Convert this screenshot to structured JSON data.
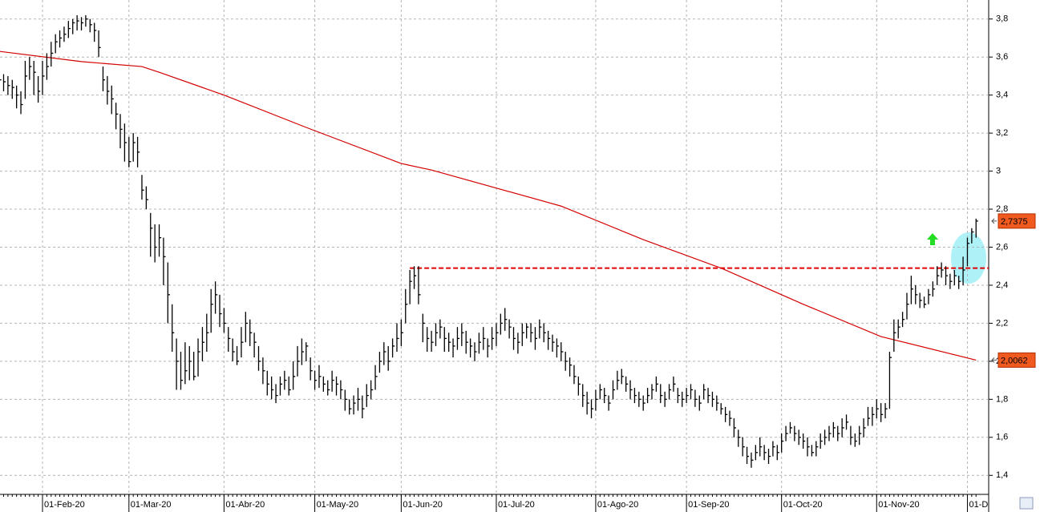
{
  "chart_data": {
    "type": "ohlc",
    "color": "#000000",
    "categories": [
      null,
      null,
      null,
      null,
      null,
      null,
      null,
      null,
      null,
      null,
      "01-Feb-20",
      null,
      null,
      null,
      null,
      null,
      null,
      null,
      null,
      null,
      null,
      null,
      null,
      null,
      null,
      null,
      null,
      null,
      null,
      null,
      "01-Mar-20",
      null,
      null,
      null,
      null,
      null,
      null,
      null,
      null,
      null,
      null,
      null,
      null,
      null,
      null,
      null,
      null,
      null,
      null,
      null,
      null,
      null,
      "01-Abr-20",
      null,
      null,
      null,
      null,
      null,
      null,
      null,
      null,
      null,
      null,
      null,
      null,
      null,
      null,
      null,
      null,
      null,
      null,
      null,
      null,
      "01-May-20",
      null,
      null,
      null,
      null,
      null,
      null,
      null,
      null,
      null,
      null,
      null,
      null,
      null,
      null,
      null,
      null,
      null,
      null,
      null,
      "01-Jun-20",
      null,
      null,
      null,
      null,
      null,
      null,
      null,
      null,
      null,
      null,
      null,
      null,
      null,
      null,
      null,
      null,
      null,
      null,
      null,
      null,
      null,
      "01-Jul-20",
      null,
      null,
      null,
      null,
      null,
      null,
      null,
      null,
      null,
      null,
      null,
      null,
      null,
      null,
      null,
      null,
      null,
      null,
      null,
      null,
      null,
      null,
      "01-Ago-20",
      null,
      null,
      null,
      null,
      null,
      null,
      null,
      null,
      null,
      null,
      null,
      null,
      null,
      null,
      null,
      null,
      null,
      null,
      null,
      null,
      "01-Sep-20",
      null,
      null,
      null,
      null,
      null,
      null,
      null,
      null,
      null,
      null,
      null,
      null,
      null,
      null,
      null,
      null,
      null,
      null,
      null,
      null,
      null,
      "01-Oct-20",
      null,
      null,
      null,
      null,
      null,
      null,
      null,
      null,
      null,
      null,
      null,
      null,
      null,
      null,
      null,
      null,
      null,
      null,
      null,
      null,
      null,
      "01-Nov-20",
      null,
      null,
      null,
      null,
      null,
      null,
      null,
      null,
      null,
      null,
      null,
      null,
      null,
      null,
      null,
      null,
      null,
      null,
      null,
      null,
      "01-D",
      null,
      null
    ],
    "high": [
      3.52,
      3.51,
      3.5,
      3.48,
      3.45,
      3.42,
      3.58,
      3.6,
      3.58,
      3.5,
      3.58,
      3.62,
      3.68,
      3.72,
      3.74,
      3.76,
      3.79,
      3.8,
      3.82,
      3.81,
      3.82,
      3.8,
      3.78,
      3.74,
      3.55,
      3.5,
      3.45,
      3.36,
      3.3,
      3.25,
      3.18,
      3.2,
      3.18,
      2.98,
      2.92,
      2.78,
      2.72,
      2.72,
      2.65,
      2.52,
      2.3,
      2.12,
      2.05,
      2.1,
      2.08,
      2.05,
      2.12,
      2.18,
      2.25,
      2.38,
      2.42,
      2.35,
      2.28,
      2.18,
      2.12,
      2.08,
      2.18,
      2.26,
      2.22,
      2.15,
      2.08,
      2.02,
      1.95,
      1.92,
      1.88,
      1.92,
      1.95,
      1.92,
      2.0,
      2.08,
      2.12,
      2.1,
      2.02,
      1.95,
      1.98,
      1.92,
      1.9,
      1.95,
      1.92,
      1.9,
      1.85,
      1.8,
      1.82,
      1.86,
      1.82,
      1.88,
      1.9,
      1.98,
      2.05,
      2.1,
      2.08,
      2.12,
      2.2,
      2.22,
      2.38,
      2.48,
      2.5,
      2.5,
      2.25,
      2.18,
      2.16,
      2.2,
      2.22,
      2.18,
      2.15,
      2.12,
      2.18,
      2.2,
      2.16,
      2.12,
      2.1,
      2.15,
      2.18,
      2.12,
      2.18,
      2.2,
      2.25,
      2.28,
      2.22,
      2.18,
      2.15,
      2.2,
      2.2,
      2.2,
      2.18,
      2.22,
      2.2,
      2.16,
      2.14,
      2.12,
      2.1,
      2.05,
      2.02,
      1.98,
      1.92,
      1.88,
      1.84,
      1.8,
      1.85,
      1.88,
      1.86,
      1.82,
      1.9,
      1.95,
      1.96,
      1.92,
      1.9,
      1.86,
      1.84,
      1.82,
      1.86,
      1.88,
      1.92,
      1.88,
      1.84,
      1.88,
      1.92,
      1.86,
      1.84,
      1.86,
      1.88,
      1.85,
      1.82,
      1.88,
      1.86,
      1.84,
      1.82,
      1.78,
      1.76,
      1.74,
      1.7,
      1.64,
      1.6,
      1.55,
      1.52,
      1.56,
      1.6,
      1.56,
      1.54,
      1.58,
      1.56,
      1.62,
      1.66,
      1.68,
      1.66,
      1.64,
      1.62,
      1.6,
      1.56,
      1.58,
      1.62,
      1.64,
      1.66,
      1.68,
      1.66,
      1.7,
      1.72,
      1.66,
      1.62,
      1.66,
      1.7,
      1.76,
      1.76,
      1.8,
      1.78,
      1.78,
      2.05,
      2.22,
      2.22,
      2.26,
      2.36,
      2.45,
      2.4,
      2.36,
      2.34,
      2.38,
      2.42,
      2.5,
      2.52,
      2.5,
      2.46,
      2.48,
      2.45,
      2.55,
      2.65,
      2.7,
      2.75
    ],
    "low": [
      3.44,
      3.42,
      3.4,
      3.38,
      3.33,
      3.3,
      3.38,
      3.48,
      3.4,
      3.36,
      3.4,
      3.48,
      3.55,
      3.62,
      3.65,
      3.68,
      3.7,
      3.72,
      3.74,
      3.74,
      3.76,
      3.73,
      3.68,
      3.6,
      3.42,
      3.35,
      3.3,
      3.22,
      3.12,
      3.05,
      3.02,
      3.05,
      3.02,
      2.85,
      2.8,
      2.55,
      2.52,
      2.55,
      2.4,
      2.2,
      2.05,
      1.85,
      1.85,
      1.88,
      1.9,
      1.9,
      1.92,
      2.0,
      2.05,
      2.15,
      2.25,
      2.18,
      2.15,
      2.05,
      2.0,
      1.98,
      2.02,
      2.1,
      2.08,
      2.02,
      1.95,
      1.88,
      1.82,
      1.8,
      1.78,
      1.82,
      1.85,
      1.82,
      1.85,
      1.92,
      1.98,
      2.0,
      1.9,
      1.85,
      1.86,
      1.84,
      1.82,
      1.84,
      1.82,
      1.8,
      1.74,
      1.72,
      1.72,
      1.74,
      1.7,
      1.76,
      1.8,
      1.85,
      1.94,
      1.98,
      1.95,
      2.02,
      2.05,
      2.08,
      2.2,
      2.3,
      2.38,
      2.3,
      2.1,
      2.05,
      2.05,
      2.08,
      2.12,
      2.05,
      2.05,
      2.02,
      2.06,
      2.08,
      2.04,
      2.02,
      2.0,
      2.04,
      2.06,
      2.02,
      2.06,
      2.08,
      2.14,
      2.16,
      2.12,
      2.06,
      2.04,
      2.08,
      2.12,
      2.1,
      2.06,
      2.12,
      2.1,
      2.06,
      2.05,
      2.02,
      2.0,
      1.95,
      1.92,
      1.88,
      1.82,
      1.76,
      1.72,
      1.7,
      1.74,
      1.8,
      1.78,
      1.74,
      1.8,
      1.85,
      1.88,
      1.84,
      1.8,
      1.78,
      1.76,
      1.74,
      1.78,
      1.8,
      1.84,
      1.78,
      1.76,
      1.8,
      1.84,
      1.78,
      1.76,
      1.78,
      1.8,
      1.76,
      1.74,
      1.8,
      1.78,
      1.76,
      1.74,
      1.72,
      1.68,
      1.66,
      1.6,
      1.55,
      1.5,
      1.46,
      1.44,
      1.48,
      1.5,
      1.48,
      1.46,
      1.5,
      1.48,
      1.52,
      1.58,
      1.62,
      1.58,
      1.56,
      1.54,
      1.5,
      1.5,
      1.5,
      1.54,
      1.56,
      1.58,
      1.6,
      1.58,
      1.6,
      1.64,
      1.56,
      1.55,
      1.56,
      1.6,
      1.66,
      1.66,
      1.7,
      1.68,
      1.7,
      1.75,
      2.05,
      2.12,
      2.18,
      2.22,
      2.3,
      2.3,
      2.28,
      2.28,
      2.3,
      2.34,
      2.4,
      2.44,
      2.4,
      2.38,
      2.4,
      2.38,
      2.4,
      2.5,
      2.62,
      2.65
    ],
    "close": [
      3.48,
      3.47,
      3.45,
      3.44,
      3.4,
      3.35,
      3.5,
      3.55,
      3.52,
      3.42,
      3.5,
      3.55,
      3.62,
      3.68,
      3.7,
      3.72,
      3.75,
      3.78,
      3.79,
      3.78,
      3.8,
      3.77,
      3.74,
      3.65,
      3.48,
      3.42,
      3.38,
      3.3,
      3.22,
      3.15,
      3.05,
      3.15,
      3.1,
      2.9,
      2.85,
      2.7,
      2.6,
      2.65,
      2.55,
      2.35,
      2.15,
      2.0,
      1.9,
      1.95,
      2.0,
      1.92,
      2.05,
      2.1,
      2.15,
      2.3,
      2.35,
      2.25,
      2.2,
      2.12,
      2.05,
      2.0,
      2.1,
      2.2,
      2.15,
      2.1,
      2.0,
      1.95,
      1.88,
      1.85,
      1.82,
      1.88,
      1.9,
      1.85,
      1.92,
      2.0,
      2.05,
      2.08,
      1.95,
      1.9,
      1.92,
      1.88,
      1.85,
      1.9,
      1.88,
      1.85,
      1.8,
      1.75,
      1.78,
      1.8,
      1.75,
      1.82,
      1.85,
      1.92,
      2.0,
      2.05,
      2.0,
      2.08,
      2.12,
      2.15,
      2.3,
      2.42,
      2.45,
      2.35,
      2.2,
      2.12,
      2.1,
      2.15,
      2.18,
      2.12,
      2.1,
      2.08,
      2.12,
      2.15,
      2.1,
      2.08,
      2.05,
      2.1,
      2.12,
      2.08,
      2.12,
      2.15,
      2.2,
      2.22,
      2.18,
      2.12,
      2.1,
      2.15,
      2.18,
      2.15,
      2.12,
      2.18,
      2.15,
      2.12,
      2.1,
      2.08,
      2.05,
      2.0,
      1.98,
      1.92,
      1.88,
      1.82,
      1.78,
      1.75,
      1.8,
      1.85,
      1.82,
      1.78,
      1.85,
      1.9,
      1.92,
      1.88,
      1.85,
      1.82,
      1.8,
      1.78,
      1.82,
      1.85,
      1.88,
      1.82,
      1.8,
      1.85,
      1.88,
      1.82,
      1.8,
      1.82,
      1.85,
      1.8,
      1.78,
      1.85,
      1.82,
      1.8,
      1.78,
      1.75,
      1.72,
      1.7,
      1.65,
      1.6,
      1.55,
      1.5,
      1.48,
      1.52,
      1.55,
      1.52,
      1.5,
      1.55,
      1.52,
      1.58,
      1.62,
      1.65,
      1.62,
      1.6,
      1.58,
      1.55,
      1.52,
      1.55,
      1.58,
      1.6,
      1.62,
      1.65,
      1.62,
      1.65,
      1.68,
      1.6,
      1.58,
      1.62,
      1.65,
      1.7,
      1.72,
      1.75,
      1.72,
      1.75,
      2.02,
      2.15,
      2.18,
      2.22,
      2.3,
      2.38,
      2.35,
      2.32,
      2.3,
      2.35,
      2.38,
      2.45,
      2.48,
      2.45,
      2.42,
      2.45,
      2.42,
      2.48,
      2.62,
      2.68,
      2.7375
    ],
    "moving_average": {
      "color": "#d40000",
      "x": [
        0,
        19,
        33,
        37,
        52,
        71,
        93,
        100,
        130,
        149,
        167,
        186,
        204,
        226
      ],
      "values": [
        3.63,
        3.576,
        3.55,
        3.52,
        3.4,
        3.23,
        3.04,
        3.006,
        2.816,
        2.64,
        2.49,
        2.3,
        2.13,
        2.0062
      ]
    },
    "level": {
      "value": 2.49,
      "start": 95,
      "color": "#e00000"
    },
    "price_tags": [
      {
        "value": 2.7375,
        "label": "2,7375"
      },
      {
        "value": 2.0062,
        "label": "2,0062"
      }
    ],
    "ylim": [
      1.3,
      3.9
    ],
    "yticks": [
      {
        "value": 1.4,
        "label": "1,4"
      },
      {
        "value": 1.6,
        "label": "1,6"
      },
      {
        "value": 1.8,
        "label": "1,8"
      },
      {
        "value": 2,
        "label": "2"
      },
      {
        "value": 2.2,
        "label": "2,2"
      },
      {
        "value": 2.4,
        "label": "2,4"
      },
      {
        "value": 2.6,
        "label": "2,6"
      },
      {
        "value": 2.8,
        "label": "2,8"
      },
      3,
      {
        "value": 3.2,
        "label": "3,2"
      },
      {
        "value": 3.4,
        "label": "3,4"
      },
      {
        "value": 3.6,
        "label": "3,6"
      },
      {
        "value": 3.8,
        "label": "3,8"
      }
    ],
    "grid": true
  }
}
